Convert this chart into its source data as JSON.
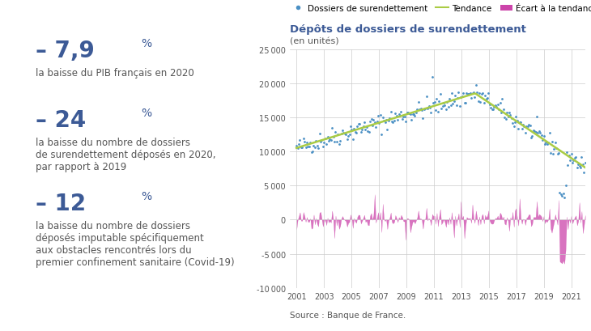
{
  "title": "Dépôts de dossiers de surendettement",
  "subtitle": "(en unités)",
  "title_color": "#3c5a96",
  "source": "Source : Banque de France.",
  "legend_labels": [
    "Dossiers de surendettement",
    "Tendance",
    "Écart à la tendance"
  ],
  "dot_color": "#4a90c4",
  "trend_color": "#aacc44",
  "ecart_color": "#cc44aa",
  "ylim": [
    -10000,
    25000
  ],
  "yticks": [
    -10000,
    -5000,
    0,
    5000,
    10000,
    15000,
    20000,
    25000
  ],
  "xticks": [
    2001,
    2003,
    2005,
    2007,
    2009,
    2011,
    2013,
    2015,
    2017,
    2019,
    2021
  ],
  "xlim": [
    2000.5,
    2022
  ],
  "stat1_big": "– 7,9",
  "stat1_small": "%",
  "stat1_desc": "la baisse du PIB français en 2020",
  "stat2_big": "– 24",
  "stat2_small": "%",
  "stat2_desc": "la baisse du nombre de dossiers\nde surendettement déposés en 2020,\npar rapport à 2019",
  "stat3_big": "– 12",
  "stat3_small": "%",
  "stat3_desc": "la baisse du nombre de dossiers\ndéposés imputable spécifiquement\naux obstacles rencontrés lors du\npremier confinement sanitaire (Covid-19)",
  "big_color": "#3c5a96",
  "small_color": "#3c5a96",
  "desc_color": "#555555"
}
